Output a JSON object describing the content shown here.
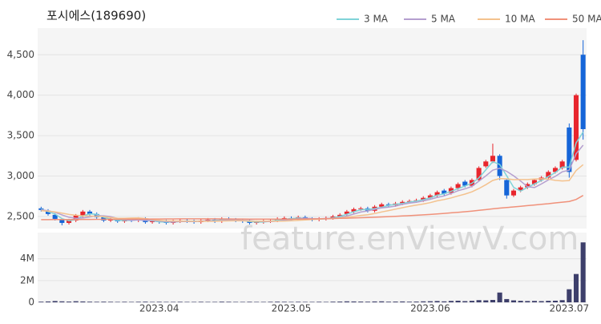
{
  "chart_data": {
    "type": "candlestick",
    "title": "포시에스(189690)",
    "watermark": "feature.enViewV.com",
    "categories": [
      null,
      null,
      null,
      null,
      null,
      null,
      null,
      null,
      null,
      null,
      null,
      null,
      null,
      null,
      null,
      null,
      null,
      "2023.04",
      null,
      null,
      null,
      null,
      null,
      null,
      null,
      null,
      null,
      null,
      null,
      null,
      null,
      null,
      null,
      null,
      null,
      null,
      "2023.05",
      null,
      null,
      null,
      null,
      null,
      null,
      null,
      null,
      null,
      null,
      null,
      null,
      null,
      null,
      null,
      null,
      null,
      null,
      null,
      "2023.06",
      null,
      null,
      null,
      null,
      null,
      null,
      null,
      null,
      null,
      null,
      null,
      null,
      null,
      null,
      null,
      null,
      null,
      null,
      null,
      "2023.07",
      null,
      null
    ],
    "open": [
      2600,
      2570,
      2520,
      2460,
      2420,
      2450,
      2510,
      2560,
      2530,
      2490,
      2450,
      2460,
      2440,
      2460,
      2450,
      2470,
      2430,
      2440,
      2440,
      2420,
      2440,
      2450,
      2440,
      2430,
      2450,
      2460,
      2440,
      2470,
      2460,
      2450,
      2440,
      2420,
      2430,
      2440,
      2450,
      2470,
      2480,
      2470,
      2490,
      2470,
      2460,
      2470,
      2480,
      2500,
      2530,
      2560,
      2590,
      2600,
      2570,
      2620,
      2650,
      2640,
      2660,
      2680,
      2690,
      2700,
      2730,
      2760,
      2820,
      2790,
      2850,
      2930,
      2880,
      2950,
      3120,
      3180,
      3250,
      2950,
      2760,
      2820,
      2860,
      2900,
      2950,
      2980,
      3050,
      3100,
      3600,
      3200,
      4500
    ],
    "high": [
      2620,
      2590,
      2540,
      2480,
      2470,
      2530,
      2580,
      2580,
      2550,
      2510,
      2480,
      2480,
      2480,
      2480,
      2490,
      2490,
      2460,
      2460,
      2460,
      2460,
      2470,
      2470,
      2460,
      2470,
      2480,
      2480,
      2490,
      2490,
      2480,
      2470,
      2460,
      2450,
      2460,
      2470,
      2490,
      2500,
      2500,
      2510,
      2510,
      2490,
      2490,
      2500,
      2520,
      2540,
      2580,
      2610,
      2620,
      2620,
      2640,
      2670,
      2670,
      2680,
      2700,
      2710,
      2720,
      2750,
      2780,
      2820,
      2840,
      2870,
      2920,
      2950,
      2970,
      3120,
      3200,
      3400,
      3270,
      2970,
      2840,
      2880,
      2920,
      2970,
      3000,
      3070,
      3120,
      3200,
      3650,
      4020,
      4680
    ],
    "low": [
      2560,
      2510,
      2450,
      2390,
      2400,
      2430,
      2490,
      2510,
      2470,
      2430,
      2430,
      2420,
      2420,
      2430,
      2430,
      2410,
      2410,
      2410,
      2400,
      2400,
      2420,
      2420,
      2410,
      2410,
      2430,
      2420,
      2420,
      2440,
      2430,
      2420,
      2400,
      2400,
      2410,
      2420,
      2430,
      2450,
      2450,
      2450,
      2450,
      2440,
      2440,
      2450,
      2460,
      2480,
      2510,
      2540,
      2570,
      2550,
      2550,
      2600,
      2620,
      2620,
      2640,
      2660,
      2670,
      2680,
      2710,
      2740,
      2760,
      2770,
      2830,
      2860,
      2860,
      2930,
      3100,
      3160,
      2950,
      2720,
      2740,
      2800,
      2840,
      2880,
      2930,
      2960,
      3030,
      3080,
      2980,
      3180,
      3450
    ],
    "close": [
      2580,
      2530,
      2470,
      2420,
      2450,
      2510,
      2560,
      2530,
      2490,
      2450,
      2460,
      2440,
      2460,
      2450,
      2470,
      2430,
      2440,
      2430,
      2420,
      2440,
      2450,
      2440,
      2430,
      2450,
      2460,
      2440,
      2470,
      2460,
      2450,
      2440,
      2420,
      2430,
      2440,
      2450,
      2470,
      2480,
      2470,
      2490,
      2470,
      2460,
      2470,
      2480,
      2500,
      2520,
      2560,
      2590,
      2600,
      2570,
      2620,
      2650,
      2640,
      2660,
      2680,
      2690,
      2700,
      2730,
      2760,
      2800,
      2780,
      2850,
      2900,
      2880,
      2950,
      3100,
      3180,
      3250,
      3000,
      2760,
      2820,
      2860,
      2900,
      2950,
      2980,
      3050,
      3100,
      3180,
      3050,
      4000,
      3580
    ],
    "up_color": "#e8262d",
    "down_color": "#1565d8",
    "series": [
      {
        "name": "3 MA",
        "color": "#7fd3d8",
        "values": [
          2590,
          2560,
          2530,
          2473,
          2447,
          2460,
          2507,
          2533,
          2527,
          2490,
          2467,
          2450,
          2453,
          2450,
          2460,
          2450,
          2447,
          2433,
          2430,
          2430,
          2437,
          2443,
          2440,
          2440,
          2447,
          2450,
          2457,
          2457,
          2460,
          2450,
          2437,
          2430,
          2430,
          2440,
          2453,
          2467,
          2473,
          2480,
          2477,
          2473,
          2467,
          2470,
          2483,
          2500,
          2527,
          2557,
          2583,
          2587,
          2597,
          2613,
          2637,
          2650,
          2660,
          2677,
          2690,
          2707,
          2730,
          2763,
          2780,
          2810,
          2843,
          2877,
          2910,
          2977,
          3077,
          3177,
          3143,
          3003,
          2860,
          2813,
          2860,
          2903,
          2943,
          2993,
          3043,
          3110,
          3110,
          3410,
          3543
        ]
      },
      {
        "name": "5 MA",
        "color": "#b59fcf",
        "values": [
          2580,
          2570,
          2550,
          2520,
          2490,
          2476,
          2482,
          2494,
          2508,
          2508,
          2498,
          2474,
          2460,
          2452,
          2456,
          2450,
          2450,
          2444,
          2438,
          2432,
          2436,
          2436,
          2436,
          2442,
          2446,
          2444,
          2450,
          2456,
          2456,
          2452,
          2448,
          2440,
          2436,
          2436,
          2442,
          2454,
          2462,
          2472,
          2478,
          2474,
          2472,
          2474,
          2476,
          2486,
          2506,
          2530,
          2554,
          2568,
          2588,
          2606,
          2616,
          2628,
          2650,
          2664,
          2674,
          2692,
          2712,
          2736,
          2754,
          2784,
          2818,
          2842,
          2872,
          2936,
          3002,
          3072,
          3096,
          3058,
          3002,
          2938,
          2868,
          2858,
          2902,
          2952,
          2996,
          3052,
          3072,
          3276,
          3382
        ]
      },
      {
        "name": "10 MA",
        "color": "#f4c28e",
        "values": [
          2570,
          2565,
          2555,
          2540,
          2525,
          2515,
          2508,
          2505,
          2502,
          2499,
          2487,
          2478,
          2477,
          2480,
          2482,
          2474,
          2462,
          2452,
          2445,
          2444,
          2442,
          2442,
          2440,
          2440,
          2439,
          2440,
          2443,
          2445,
          2446,
          2446,
          2443,
          2442,
          2442,
          2441,
          2442,
          2443,
          2447,
          2451,
          2456,
          2461,
          2466,
          2471,
          2474,
          2481,
          2490,
          2500,
          2513,
          2521,
          2536,
          2555,
          2572,
          2590,
          2608,
          2625,
          2640,
          2654,
          2670,
          2693,
          2709,
          2729,
          2754,
          2777,
          2804,
          2845,
          2893,
          2945,
          2969,
          2965,
          2955,
          2956,
          2956,
          2963,
          2966,
          2961,
          2946,
          2939,
          2944,
          3068,
          3141
        ]
      },
      {
        "name": "50 MA",
        "color": "#f0917a",
        "values": [
          2460,
          2460,
          2461,
          2461,
          2462,
          2462,
          2463,
          2463,
          2464,
          2464,
          2465,
          2465,
          2466,
          2466,
          2467,
          2467,
          2468,
          2468,
          2469,
          2469,
          2470,
          2470,
          2470,
          2470,
          2470,
          2470,
          2469,
          2469,
          2468,
          2468,
          2467,
          2467,
          2466,
          2466,
          2466,
          2466,
          2467,
          2467,
          2468,
          2469,
          2470,
          2472,
          2474,
          2476,
          2478,
          2481,
          2484,
          2487,
          2490,
          2494,
          2498,
          2502,
          2506,
          2510,
          2515,
          2520,
          2525,
          2531,
          2537,
          2544,
          2551,
          2558,
          2566,
          2575,
          2584,
          2594,
          2603,
          2610,
          2618,
          2626,
          2634,
          2642,
          2650,
          2658,
          2667,
          2676,
          2685,
          2710,
          2760
        ]
      }
    ],
    "ylim": [
      2350,
      4830
    ],
    "yticks": [
      {
        "value": 2500,
        "label": "2,500"
      },
      {
        "value": 3000,
        "label": "3,000"
      },
      {
        "value": 3500,
        "label": "3,500"
      },
      {
        "value": 4000,
        "label": "4,000"
      },
      {
        "value": 4500,
        "label": "4,500"
      }
    ],
    "volume": {
      "color": "#3d3f6b",
      "values": [
        60000,
        80000,
        120000,
        90000,
        70000,
        100000,
        80000,
        60000,
        50000,
        60000,
        50000,
        40000,
        50000,
        40000,
        50000,
        60000,
        40000,
        50000,
        40000,
        40000,
        50000,
        40000,
        40000,
        50000,
        40000,
        40000,
        60000,
        50000,
        40000,
        40000,
        50000,
        40000,
        40000,
        50000,
        60000,
        50000,
        40000,
        50000,
        40000,
        40000,
        50000,
        40000,
        60000,
        70000,
        90000,
        80000,
        70000,
        60000,
        80000,
        90000,
        60000,
        70000,
        80000,
        60000,
        70000,
        90000,
        100000,
        120000,
        90000,
        130000,
        150000,
        110000,
        140000,
        200000,
        180000,
        220000,
        900000,
        300000,
        180000,
        140000,
        120000,
        130000,
        110000,
        140000,
        150000,
        200000,
        1200000,
        2600000,
        5500000
      ],
      "ylim": [
        0,
        6400000
      ],
      "yticks": [
        0,
        {
          "value": 2000000,
          "label": "2M"
        },
        {
          "value": 4000000,
          "label": "4M"
        }
      ]
    }
  }
}
